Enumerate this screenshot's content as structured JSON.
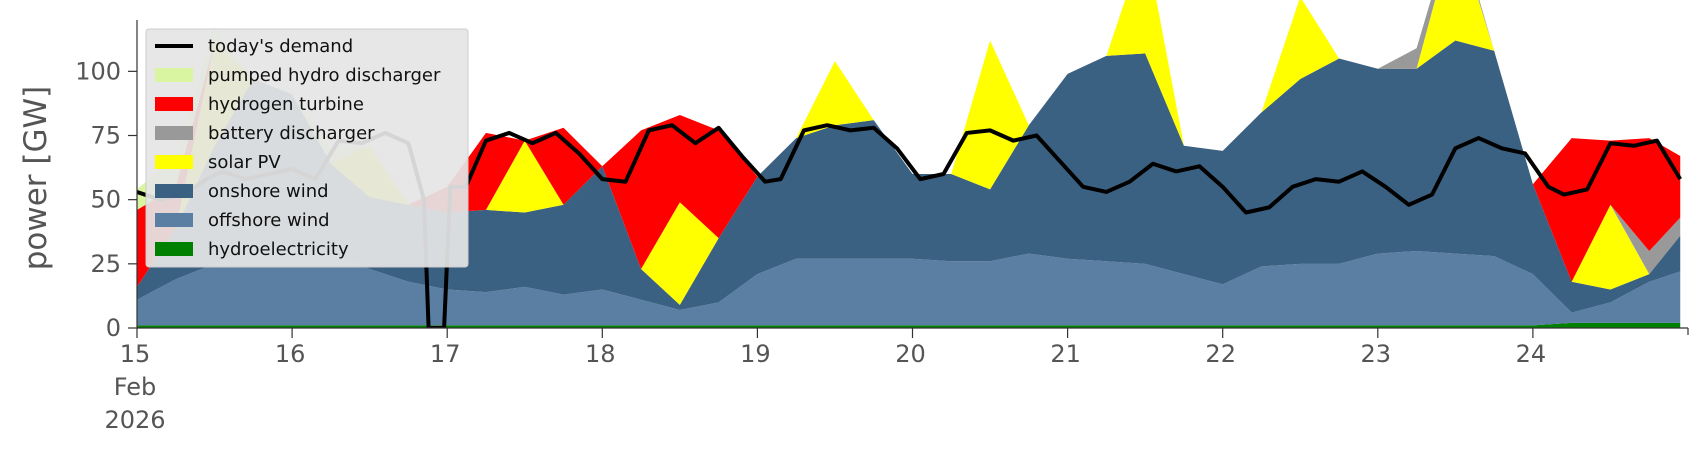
{
  "chart_data": {
    "type": "area",
    "title": "",
    "xlabel": "",
    "ylabel": "power [GW]",
    "ylim": [
      0,
      120
    ],
    "yticks": [
      0,
      25,
      50,
      75,
      100
    ],
    "xlim_days": [
      15,
      25
    ],
    "xticks": [
      {
        "day": 15,
        "lines": [
          "15",
          "Feb",
          "2026"
        ]
      },
      {
        "day": 16,
        "lines": [
          "16"
        ]
      },
      {
        "day": 17,
        "lines": [
          "17"
        ]
      },
      {
        "day": 18,
        "lines": [
          "18"
        ]
      },
      {
        "day": 19,
        "lines": [
          "19"
        ]
      },
      {
        "day": 20,
        "lines": [
          "20"
        ]
      },
      {
        "day": 21,
        "lines": [
          "21"
        ]
      },
      {
        "day": 22,
        "lines": [
          "22"
        ]
      },
      {
        "day": 23,
        "lines": [
          "23"
        ]
      },
      {
        "day": 24,
        "lines": [
          "24"
        ]
      }
    ],
    "legend_position": "top-left",
    "legend": [
      {
        "label": "today's demand",
        "color": "#000000",
        "kind": "line"
      },
      {
        "label": "pumped hydro discharger",
        "color": "#d9f5a2",
        "kind": "patch"
      },
      {
        "label": "hydrogen turbine",
        "color": "#ff0000",
        "kind": "patch"
      },
      {
        "label": "battery discharger",
        "color": "#999999",
        "kind": "patch"
      },
      {
        "label": "solar PV",
        "color": "#ffff00",
        "kind": "patch"
      },
      {
        "label": "onshore wind",
        "color": "#3b6182",
        "kind": "patch"
      },
      {
        "label": "offshore wind",
        "color": "#5b7fa3",
        "kind": "patch"
      },
      {
        "label": "hydroelectricity",
        "color": "#008000",
        "kind": "patch"
      }
    ],
    "x_days": [
      15.0,
      15.25,
      15.5,
      15.75,
      16.0,
      16.25,
      16.5,
      16.75,
      17.0,
      17.25,
      17.5,
      17.75,
      18.0,
      18.25,
      18.5,
      18.75,
      19.0,
      19.25,
      19.5,
      19.75,
      20.0,
      20.25,
      20.5,
      20.75,
      21.0,
      21.25,
      21.5,
      21.75,
      22.0,
      22.25,
      22.5,
      22.75,
      23.0,
      23.25,
      23.5,
      23.75,
      24.0,
      24.25,
      24.5,
      24.75,
      24.95
    ],
    "series": [
      {
        "name": "hydroelectricity",
        "color": "#008000",
        "values": [
          1,
          1,
          1,
          1,
          1,
          1,
          1,
          1,
          1,
          1,
          1,
          1,
          1,
          1,
          1,
          1,
          1,
          1,
          1,
          1,
          1,
          1,
          1,
          1,
          1,
          1,
          1,
          1,
          1,
          1,
          1,
          1,
          1,
          1,
          1,
          1,
          1,
          2,
          2,
          2,
          2
        ]
      },
      {
        "name": "offshore wind",
        "color": "#5b7fa3",
        "values": [
          10,
          18,
          24,
          30,
          31,
          28,
          22,
          17,
          14,
          13,
          15,
          12,
          14,
          10,
          6,
          9,
          20,
          26,
          26,
          26,
          26,
          25,
          25,
          28,
          26,
          25,
          24,
          20,
          16,
          23,
          24,
          24,
          28,
          29,
          28,
          27,
          20,
          4,
          8,
          16,
          20
        ]
      },
      {
        "name": "onshore wind",
        "color": "#3b6182",
        "values": [
          5,
          20,
          46,
          66,
          59,
          35,
          28,
          30,
          30,
          32,
          29,
          35,
          48,
          12,
          2,
          25,
          38,
          47,
          52,
          54,
          33,
          34,
          28,
          50,
          72,
          80,
          82,
          50,
          52,
          60,
          72,
          80,
          72,
          71,
          83,
          80,
          35,
          12,
          5,
          3,
          14
        ]
      },
      {
        "name": "solar PV",
        "color": "#ffff00",
        "values": [
          0,
          0,
          40,
          0,
          0,
          0,
          20,
          0,
          0,
          0,
          28,
          0,
          0,
          0,
          40,
          0,
          0,
          0,
          25,
          0,
          0,
          0,
          58,
          0,
          0,
          0,
          44,
          0,
          0,
          0,
          32,
          0,
          0,
          0,
          45,
          0,
          0,
          0,
          33,
          0,
          0
        ]
      },
      {
        "name": "battery discharger",
        "color": "#999999",
        "values": [
          0,
          0,
          0,
          0,
          0,
          0,
          0,
          0,
          0,
          0,
          0,
          0,
          0,
          0,
          0,
          0,
          0,
          0,
          0,
          0,
          0,
          0,
          0,
          0,
          0,
          0,
          0,
          0,
          0,
          0,
          0,
          0,
          0,
          8,
          3,
          0,
          0,
          0,
          0,
          9,
          7
        ]
      },
      {
        "name": "hydrogen turbine",
        "color": "#ff0000",
        "values": [
          30,
          16,
          0,
          0,
          0,
          0,
          0,
          0,
          10,
          30,
          0,
          30,
          0,
          54,
          34,
          42,
          0,
          0,
          0,
          0,
          0,
          0,
          0,
          0,
          0,
          0,
          0,
          0,
          0,
          0,
          0,
          0,
          0,
          0,
          0,
          0,
          0,
          56,
          25,
          44,
          24
        ]
      },
      {
        "name": "pumped hydro discharger",
        "color": "#d9f5a2",
        "values": [
          8,
          12,
          6,
          0,
          0,
          6,
          0,
          0,
          0,
          0,
          0,
          0,
          0,
          0,
          0,
          0,
          0,
          0,
          0,
          0,
          0,
          0,
          0,
          0,
          0,
          0,
          0,
          0,
          0,
          0,
          0,
          0,
          0,
          0,
          0,
          0,
          0,
          0,
          0,
          0,
          0
        ]
      }
    ],
    "demand": {
      "name": "today's demand",
      "color": "#000000",
      "x_days": [
        15.0,
        15.15,
        15.3,
        15.45,
        15.55,
        15.7,
        15.85,
        16.0,
        16.15,
        16.3,
        16.45,
        16.6,
        16.75,
        16.85,
        16.88,
        16.93,
        16.98,
        17.02,
        17.12,
        17.25,
        17.4,
        17.55,
        17.7,
        17.85,
        18.0,
        18.15,
        18.3,
        18.45,
        18.6,
        18.75,
        18.9,
        19.05,
        19.15,
        19.3,
        19.45,
        19.6,
        19.75,
        19.9,
        20.05,
        20.2,
        20.35,
        20.5,
        20.65,
        20.8,
        20.95,
        21.1,
        21.25,
        21.4,
        21.55,
        21.7,
        21.85,
        22.0,
        22.15,
        22.3,
        22.45,
        22.6,
        22.75,
        22.9,
        23.05,
        23.2,
        23.35,
        23.5,
        23.65,
        23.8,
        23.95,
        24.1,
        24.2,
        24.35,
        24.5,
        24.65,
        24.8,
        24.95
      ],
      "values": [
        53,
        50,
        52,
        58,
        61,
        58,
        60,
        62,
        58,
        73,
        72,
        76,
        72,
        50,
        0,
        0,
        0,
        55,
        55,
        73,
        76,
        72,
        76,
        68,
        58,
        57,
        77,
        79,
        72,
        78,
        67,
        57,
        58,
        77,
        79,
        77,
        78,
        70,
        58,
        60,
        76,
        77,
        73,
        75,
        65,
        55,
        53,
        57,
        64,
        61,
        63,
        55,
        45,
        47,
        55,
        58,
        57,
        61,
        55,
        48,
        52,
        70,
        74,
        70,
        68,
        55,
        52,
        54,
        72,
        71,
        73,
        58
      ]
    }
  }
}
